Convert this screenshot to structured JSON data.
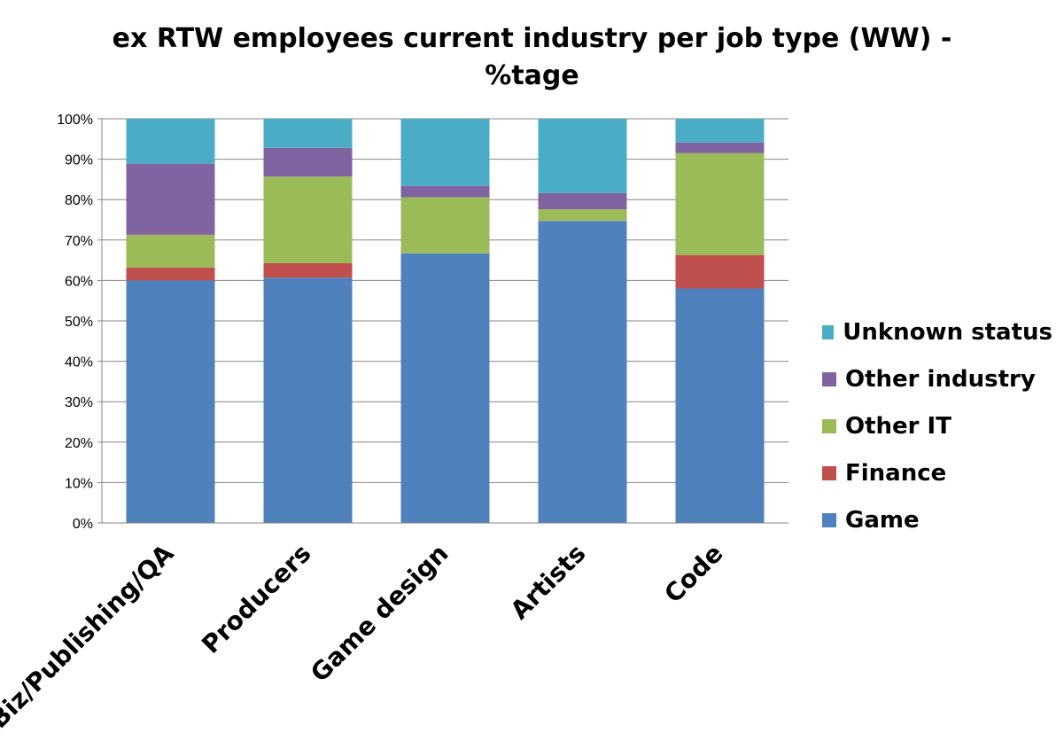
{
  "chart_data": {
    "type": "bar",
    "stacked": true,
    "title": "ex RTW employees current industry per job type (WW) - %tage",
    "title_lines": [
      "ex RTW employees current industry per job type (WW) -",
      "%tage"
    ],
    "categories": [
      "Biz/Publishing/QA",
      "Producers",
      "Game design",
      "Artists",
      "Code"
    ],
    "series": [
      {
        "name": "Game",
        "color": "#4F81BD",
        "values": [
          60,
          60.7,
          66.7,
          74.7,
          58
        ]
      },
      {
        "name": "Finance",
        "color": "#C0504D",
        "values": [
          3.2,
          3.6,
          0,
          0,
          8.3
        ]
      },
      {
        "name": "Other IT",
        "color": "#9BBB59",
        "values": [
          8.1,
          21.4,
          13.9,
          2.9,
          25.2
        ]
      },
      {
        "name": "Other industry",
        "color": "#8064A2",
        "values": [
          17.6,
          7.1,
          2.8,
          4.0,
          2.6
        ]
      },
      {
        "name": "Unknown status",
        "color": "#4BACC6",
        "values": [
          11.1,
          7.2,
          16.6,
          18.4,
          5.9
        ]
      }
    ],
    "yticks": [
      "0%",
      "10%",
      "20%",
      "30%",
      "40%",
      "50%",
      "60%",
      "70%",
      "80%",
      "90%",
      "100%"
    ],
    "ylim": [
      0,
      100
    ],
    "grid": true,
    "legend_position": "right",
    "legend_order": [
      "Unknown status",
      "Other industry",
      "Other IT",
      "Finance",
      "Game"
    ]
  }
}
